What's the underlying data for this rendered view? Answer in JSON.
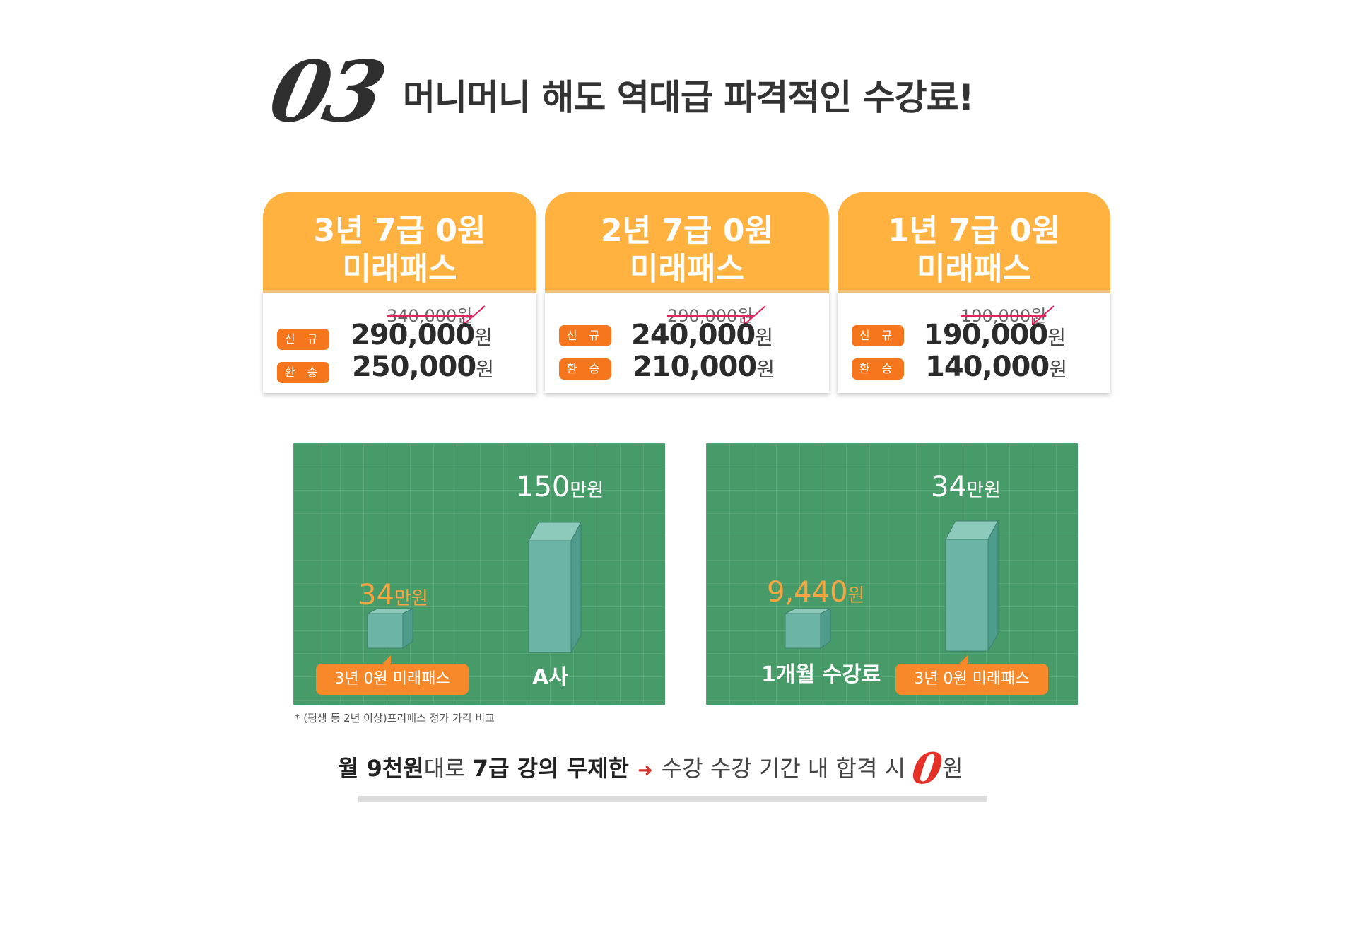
{
  "heading": {
    "number": "03",
    "title": "머니머니 해도 역대급 파격적인 수강료!"
  },
  "cards": [
    {
      "line1": "3년 7급 0원",
      "line2": "미래패스",
      "original_price": "340,000원",
      "new_label": "신 규",
      "new_price": "290,000",
      "transfer_label": "환 승",
      "transfer_price": "250,000",
      "won": "원"
    },
    {
      "line1": "2년 7급 0원",
      "line2": "미래패스",
      "original_price": "290,000원",
      "new_label": "신 규",
      "new_price": "240,000",
      "transfer_label": "환 승",
      "transfer_price": "210,000",
      "won": "원"
    },
    {
      "line1": "1년 7급 0원",
      "line2": "미래패스",
      "original_price": "190,000원",
      "new_label": "신 규",
      "new_price": "190,000",
      "transfer_label": "환 승",
      "transfer_price": "140,000",
      "won": "원"
    }
  ],
  "panels": [
    {
      "small_value": "34",
      "small_unit": "만원",
      "small_label": "3년 0원 미래패스",
      "tall_value": "150",
      "tall_unit": "만원",
      "tall_label": "A사"
    },
    {
      "small_value": "9,440",
      "small_unit": "원",
      "small_label": "1개월 수강료",
      "tall_value": "34",
      "tall_unit": "만원",
      "tall_label": "3년 0원 미래패스"
    }
  ],
  "footnote": "* (평생 등 2년 이상)프리패스 정가 가격 비교",
  "banner": {
    "part1_bold": "월 9천원",
    "part2": "대로 ",
    "part3_bold": "7급 강의 무제한",
    "arrow": "➜",
    "part4": "수강 수강 기간 내 합격 시",
    "zero": "0",
    "won": "원"
  },
  "colors": {
    "card_header": "#ffb240",
    "tag": "#f5761d",
    "panel_green": "#469b68",
    "bar_teal": "#6cb5a6",
    "callout": "#f7892b",
    "accent_red": "#e53028"
  }
}
